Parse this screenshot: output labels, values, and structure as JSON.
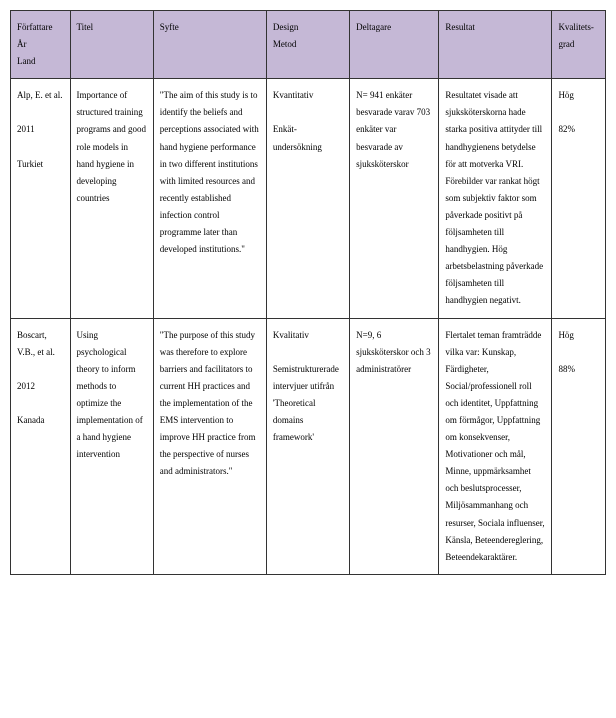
{
  "table": {
    "header_bg": "#c5b8d6",
    "border_color": "#333333",
    "columns": [
      {
        "label": "Författare\nÅr\nLand",
        "width": "10%"
      },
      {
        "label": "Titel",
        "width": "14%"
      },
      {
        "label": "Syfte",
        "width": "19%"
      },
      {
        "label": "Design\nMetod",
        "width": "14%"
      },
      {
        "label": "Deltagare",
        "width": "15%"
      },
      {
        "label": "Resultat",
        "width": "19%"
      },
      {
        "label": "Kvalitets-grad",
        "width": "9%"
      }
    ],
    "rows": [
      {
        "author": "Alp, E. et al.\n\n2011\n\nTurkiet",
        "title": "Importance of structured training programs and good role models in hand hygiene in developing countries",
        "purpose": "\"The aim of this study is to identify the beliefs and perceptions associated with hand hygiene performance in two different institutions with limited resources and recently established infection control programme later than developed institutions.\"",
        "design": "Kvantitativ\n\nEnkät-undersökning",
        "participants": "N= 941 enkäter besvarade varav 703 enkäter var besvarade av sjuksköterskor",
        "result": "Resultatet visade att sjuksköterskorna hade starka positiva attityder till handhygienens betydelse för att motverka VRI. Förebilder var rankat högt som subjektiv faktor som påverkade positivt på följsamheten till handhygien. Hög arbetsbelastning påverkade följsamheten till handhygien negativt.",
        "quality": "Hög\n\n82%"
      },
      {
        "author": "Boscart, V.B., et al.\n\n2012\n\nKanada",
        "title": "Using psychological theory to inform methods to optimize the implementation of a hand hygiene intervention",
        "purpose": "\"The purpose of this study was therefore to explore barriers and facilitators to current HH practices and the implementation of the EMS intervention to improve HH practice from the perspective of nurses and administrators.\"",
        "design": "Kvalitativ\n\nSemistrukturerade intervjuer utifrån 'Theoretical domains framework'",
        "participants": "N=9, 6 sjuksköterskor och 3 administratörer",
        "result": "Flertalet teman framträdde vilka var: Kunskap, Färdigheter, Social/professionell roll och identitet, Uppfattning om förmågor, Uppfattning om konsekvenser, Motivationer och mål, Minne, uppmärksamhet och beslutsprocesser, Miljösammanhang och resurser, Sociala influenser, Känsla, Beteendereglering, Beteendekaraktärer.",
        "quality": "Hög\n\n88%"
      }
    ]
  }
}
